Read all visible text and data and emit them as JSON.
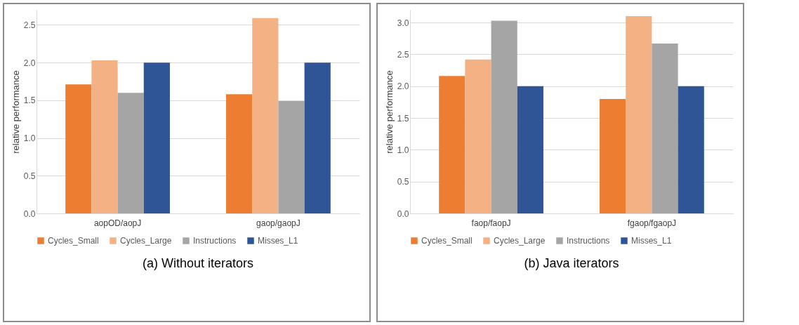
{
  "chart_data": [
    {
      "type": "bar",
      "title": "(a) Without iterators",
      "ylabel": "relative  performance",
      "categories": [
        "aopOD/aopJ",
        "gaop/gaopJ"
      ],
      "series": [
        {
          "name": "Cycles_Small",
          "color": "#ed7d31",
          "values": [
            1.71,
            1.58
          ]
        },
        {
          "name": "Cycles_Large",
          "color": "#f4b183",
          "values": [
            2.03,
            2.59
          ]
        },
        {
          "name": "Instructions",
          "color": "#a5a5a5",
          "values": [
            1.6,
            1.49
          ]
        },
        {
          "name": "Misses_L1",
          "color": "#2f5597",
          "values": [
            2.0,
            2.0
          ]
        }
      ],
      "ylim": [
        0,
        2.7
      ],
      "yticks": [
        {
          "value": 0,
          "label": "0.0"
        },
        {
          "value": 0.5,
          "label": "0.5"
        },
        {
          "value": 1,
          "label": "1.0"
        },
        {
          "value": 1.5,
          "label": "1.5"
        },
        {
          "value": 2,
          "label": "2.0"
        },
        {
          "value": 2.5,
          "label": "2.5"
        }
      ],
      "grid": "y",
      "legend": "bottom"
    },
    {
      "type": "bar",
      "title": "(b) Java iterators",
      "ylabel": "relative  performance",
      "categories": [
        "faop/faopJ",
        "fgaop/fgaopJ"
      ],
      "series": [
        {
          "name": "Cycles_Small",
          "color": "#ed7d31",
          "values": [
            2.16,
            1.8
          ]
        },
        {
          "name": "Cycles_Large",
          "color": "#f4b183",
          "values": [
            2.42,
            3.1
          ]
        },
        {
          "name": "Instructions",
          "color": "#a5a5a5",
          "values": [
            3.03,
            2.67
          ]
        },
        {
          "name": "Misses_L1",
          "color": "#2f5597",
          "values": [
            2.0,
            2.0
          ]
        }
      ],
      "ylim": [
        0,
        3.2
      ],
      "yticks": [
        {
          "value": 0,
          "label": "0.0"
        },
        {
          "value": 0.5,
          "label": "0.5"
        },
        {
          "value": 1,
          "label": "1.0"
        },
        {
          "value": 1.5,
          "label": "1.5"
        },
        {
          "value": 2,
          "label": "2.0"
        },
        {
          "value": 2.5,
          "label": "2.5"
        },
        {
          "value": 3,
          "label": "3.0"
        }
      ],
      "grid": "y",
      "legend": "bottom"
    }
  ]
}
